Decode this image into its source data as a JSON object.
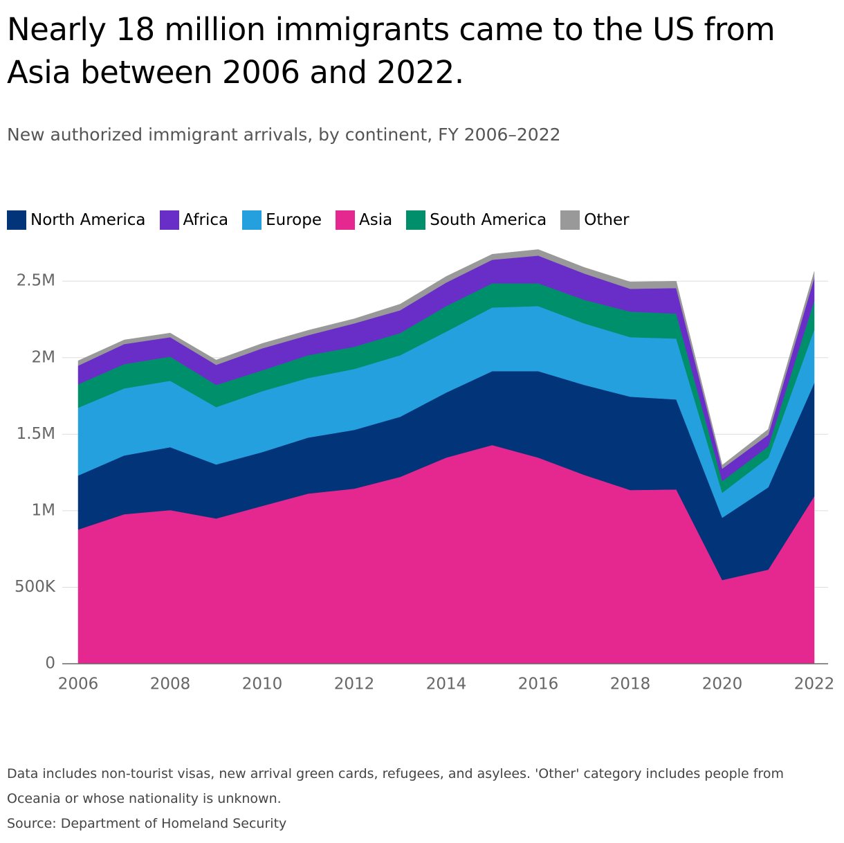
{
  "chart_data": {
    "type": "stacked_area",
    "title": "Nearly 18 million immigrants came to the US from Asia between 2006 and 2022.",
    "subtitle": "New authorized immigrant arrivals, by continent, FY 2006–2022",
    "note": "Data includes non-tourist visas, new arrival green cards, refugees, and asylees. 'Other' category includes people from Oceania or whose nationality is unknown.",
    "source": "Source: Department of Homeland Security",
    "x": [
      2006,
      2007,
      2008,
      2009,
      2010,
      2011,
      2012,
      2013,
      2014,
      2015,
      2016,
      2017,
      2018,
      2019,
      2020,
      2021,
      2022
    ],
    "xlim": [
      2006,
      2022
    ],
    "xticks": [
      2006,
      2008,
      2010,
      2012,
      2014,
      2016,
      2018,
      2020,
      2022
    ],
    "ylim": [
      0,
      2700000
    ],
    "yticks": [
      0,
      {
        "value": 500000,
        "label": "500K"
      },
      {
        "value": 1000000,
        "label": "1M"
      },
      {
        "value": 1500000,
        "label": "1.5M"
      },
      {
        "value": 2000000,
        "label": "2M"
      },
      {
        "value": 2500000,
        "label": "2.5M"
      }
    ],
    "grid": true,
    "legend_order": [
      "North America",
      "Africa",
      "Europe",
      "Asia",
      "South America",
      "Other"
    ],
    "series": [
      {
        "name": "Asia",
        "color": "#e5288f",
        "values": [
          877000,
          977000,
          1004000,
          949000,
          1031000,
          1112000,
          1144000,
          1221000,
          1347000,
          1429000,
          1347000,
          1234000,
          1135000,
          1139000,
          547000,
          615000,
          1094000
        ]
      },
      {
        "name": "North America",
        "color": "#02347a",
        "values": [
          353000,
          384000,
          411000,
          353000,
          352000,
          366000,
          384000,
          393000,
          425000,
          483000,
          565000,
          588000,
          610000,
          588000,
          407000,
          538000,
          741000
        ]
      },
      {
        "name": "Europe",
        "color": "#24a0de",
        "values": [
          443000,
          438000,
          434000,
          375000,
          398000,
          389000,
          398000,
          402000,
          398000,
          416000,
          425000,
          402000,
          389000,
          398000,
          163000,
          194000,
          349000
        ]
      },
      {
        "name": "South America",
        "color": "#008f6b",
        "values": [
          153000,
          159000,
          158000,
          145000,
          136000,
          149000,
          145000,
          145000,
          167000,
          158000,
          149000,
          154000,
          167000,
          163000,
          76000,
          73000,
          189000
        ]
      },
      {
        "name": "Africa",
        "color": "#6a2ec8",
        "values": [
          122000,
          131000,
          127000,
          131000,
          144000,
          131000,
          153000,
          149000,
          154000,
          154000,
          181000,
          172000,
          149000,
          167000,
          82000,
          76000,
          150000
        ]
      },
      {
        "name": "Other",
        "color": "#999999",
        "values": [
          32000,
          27000,
          27000,
          32000,
          32000,
          32000,
          30000,
          40000,
          40000,
          36000,
          40000,
          40000,
          45000,
          45000,
          23000,
          36000,
          40000
        ]
      }
    ]
  }
}
